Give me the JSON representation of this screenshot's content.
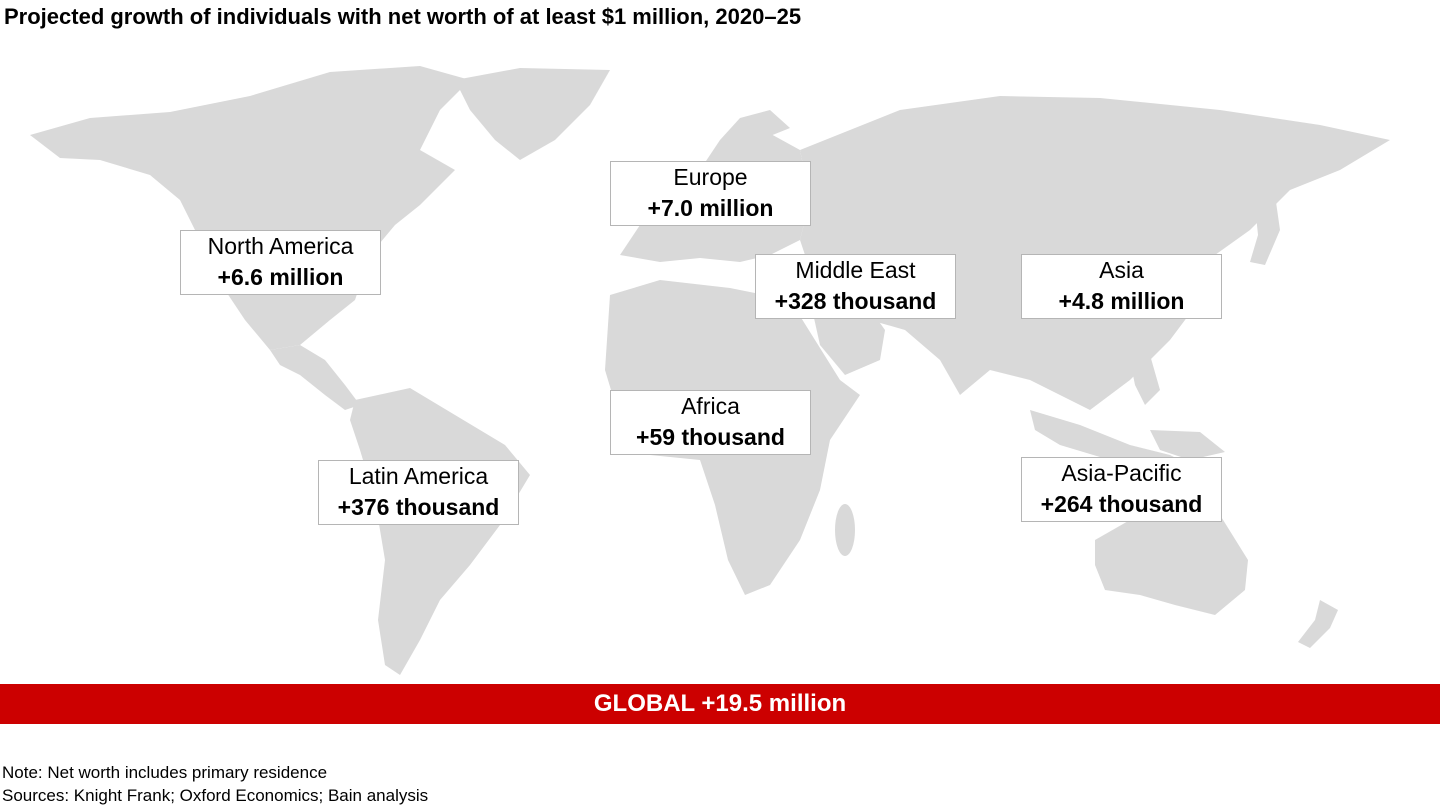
{
  "title": "Projected growth of individuals with net worth of at least $1 million, 2020–25",
  "regions": [
    {
      "name": "North America",
      "value": "+6.6 million"
    },
    {
      "name": "Europe",
      "value": "+7.0 million"
    },
    {
      "name": "Middle East",
      "value": "+328 thousand"
    },
    {
      "name": "Asia",
      "value": "+4.8 million"
    },
    {
      "name": "Africa",
      "value": "+59 thousand"
    },
    {
      "name": "Latin America",
      "value": "+376 thousand"
    },
    {
      "name": "Asia-Pacific",
      "value": "+264 thousand"
    }
  ],
  "global": "GLOBAL +19.5 million",
  "note": "Note: Net worth includes primary residence",
  "sources": "Sources: Knight Frank; Oxford Economics; Bain analysis",
  "colors": {
    "land": "#d9d9d9",
    "bar": "#cc0000",
    "border": "#b5b5b5"
  }
}
